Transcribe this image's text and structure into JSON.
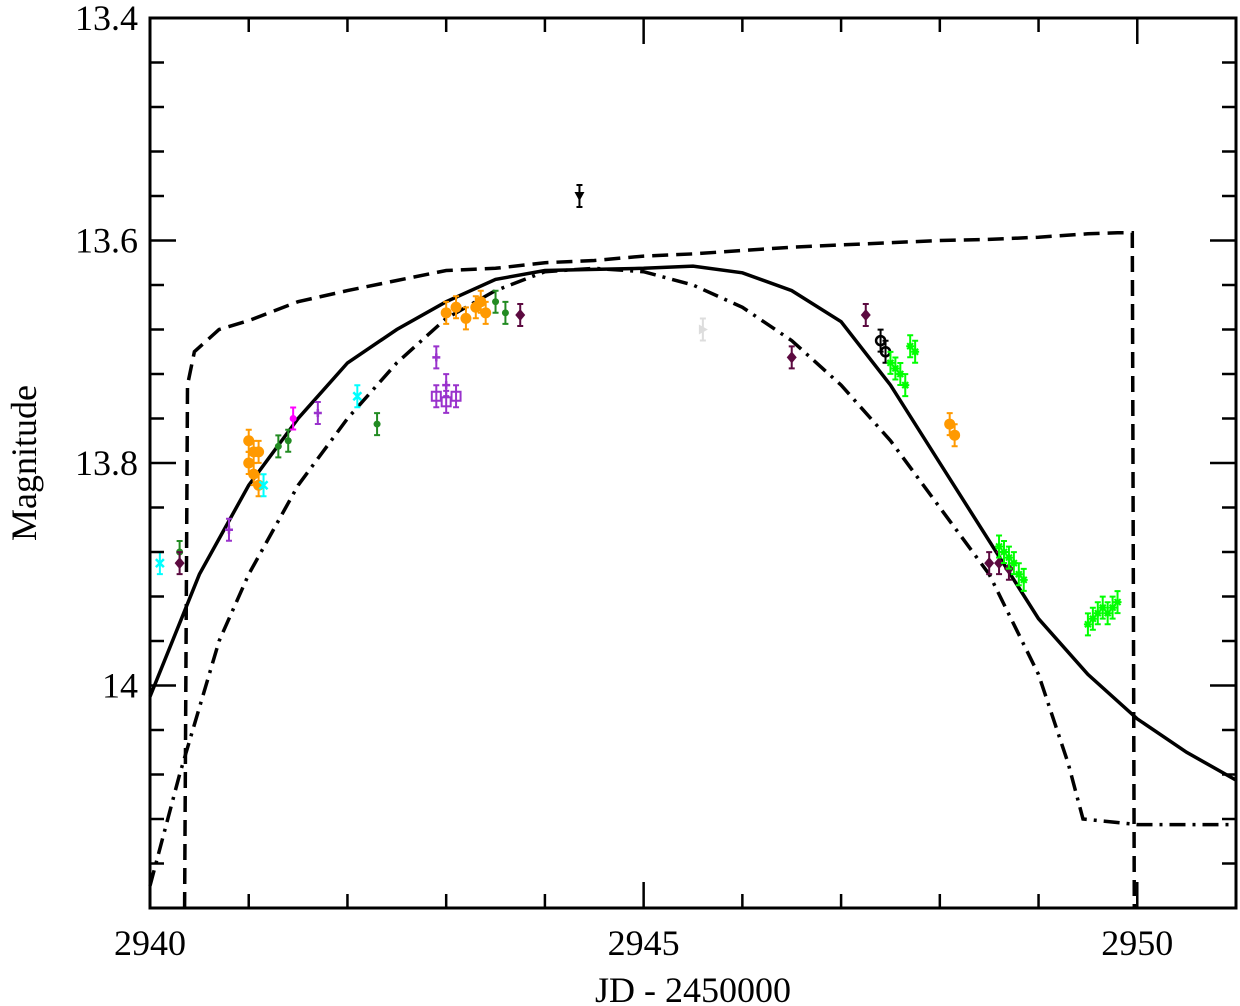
{
  "chart_data": {
    "type": "scatter",
    "title": "",
    "xlabel": "JD - 2450000",
    "ylabel": "Magnitude",
    "xlim": [
      2940,
      2951
    ],
    "ylim": [
      14.2,
      13.4
    ],
    "y_inverted": true,
    "x_ticks": [
      2940,
      2945,
      2950
    ],
    "x_tick_labels": [
      "2940",
      "2945",
      "2950"
    ],
    "y_ticks": [
      13.4,
      13.6,
      13.8,
      14.0
    ],
    "y_tick_labels": [
      "13.4",
      "13.6",
      "13.8",
      "14"
    ],
    "grid": false,
    "legend": "none",
    "model_curves": [
      {
        "style": "solid",
        "points": [
          [
            2940,
            14.01
          ],
          [
            2940.5,
            13.9
          ],
          [
            2941,
            13.82
          ],
          [
            2941.5,
            13.76
          ],
          [
            2942,
            13.71
          ],
          [
            2942.5,
            13.68
          ],
          [
            2943,
            13.655
          ],
          [
            2943.5,
            13.635
          ],
          [
            2944,
            13.627
          ],
          [
            2944.5,
            13.626
          ],
          [
            2945,
            13.625
          ],
          [
            2945.5,
            13.623
          ],
          [
            2946,
            13.629
          ],
          [
            2946.5,
            13.645
          ],
          [
            2947,
            13.673
          ],
          [
            2947.5,
            13.73
          ],
          [
            2948,
            13.8
          ],
          [
            2948.5,
            13.87
          ],
          [
            2949,
            13.94
          ],
          [
            2949.5,
            13.99
          ],
          [
            2950,
            14.03
          ],
          [
            2950.5,
            14.06
          ],
          [
            2951,
            14.085
          ]
        ]
      },
      {
        "style": "dashed",
        "points": [
          [
            2940.35,
            14.2
          ],
          [
            2940.38,
            13.73
          ],
          [
            2940.45,
            13.7
          ],
          [
            2940.7,
            13.68
          ],
          [
            2941,
            13.672
          ],
          [
            2941.5,
            13.655
          ],
          [
            2942,
            13.645
          ],
          [
            2942.5,
            13.636
          ],
          [
            2943,
            13.627
          ],
          [
            2943.5,
            13.625
          ],
          [
            2944,
            13.62
          ],
          [
            2944.5,
            13.618
          ],
          [
            2945,
            13.614
          ],
          [
            2945.5,
            13.612
          ],
          [
            2946,
            13.609
          ],
          [
            2946.5,
            13.606
          ],
          [
            2947,
            13.604
          ],
          [
            2947.5,
            13.602
          ],
          [
            2948,
            13.6
          ],
          [
            2948.5,
            13.599
          ],
          [
            2949,
            13.597
          ],
          [
            2949.5,
            13.594
          ],
          [
            2949.8,
            13.593
          ],
          [
            2949.95,
            13.593
          ],
          [
            2949.97,
            14.2
          ]
        ]
      },
      {
        "style": "dash-dot",
        "points": [
          [
            2940,
            14.18
          ],
          [
            2940.3,
            14.08
          ],
          [
            2940.7,
            13.96
          ],
          [
            2941,
            13.9
          ],
          [
            2941.5,
            13.82
          ],
          [
            2942,
            13.76
          ],
          [
            2942.5,
            13.71
          ],
          [
            2943,
            13.67
          ],
          [
            2943.5,
            13.645
          ],
          [
            2944,
            13.628
          ],
          [
            2944.5,
            13.625
          ],
          [
            2945,
            13.628
          ],
          [
            2945.5,
            13.64
          ],
          [
            2946,
            13.66
          ],
          [
            2946.5,
            13.69
          ],
          [
            2947,
            13.73
          ],
          [
            2947.5,
            13.78
          ],
          [
            2948,
            13.84
          ],
          [
            2948.5,
            13.9
          ],
          [
            2949,
            13.99
          ],
          [
            2949.3,
            14.07
          ],
          [
            2949.45,
            14.12
          ],
          [
            2950,
            14.125
          ],
          [
            2951,
            14.125
          ]
        ]
      }
    ],
    "series": [
      {
        "color": "#ff9900",
        "marker": "circle",
        "points": [
          [
            2941.0,
            13.78
          ],
          [
            2941.0,
            13.8
          ],
          [
            2941.05,
            13.79
          ],
          [
            2941.05,
            13.81
          ],
          [
            2941.1,
            13.82
          ],
          [
            2941.1,
            13.79
          ],
          [
            2943.0,
            13.665
          ],
          [
            2943.1,
            13.66
          ],
          [
            2943.2,
            13.67
          ],
          [
            2943.3,
            13.66
          ],
          [
            2943.35,
            13.655
          ],
          [
            2943.4,
            13.665
          ],
          [
            2948.1,
            13.765
          ],
          [
            2948.15,
            13.775
          ]
        ]
      },
      {
        "color": "#00ffff",
        "marker": "x",
        "points": [
          [
            2940.1,
            13.89
          ],
          [
            2941.15,
            13.82
          ],
          [
            2942.1,
            13.74
          ]
        ]
      },
      {
        "color": "#228b22",
        "marker": "dot",
        "points": [
          [
            2940.3,
            13.88
          ],
          [
            2941.3,
            13.785
          ],
          [
            2941.4,
            13.78
          ],
          [
            2942.3,
            13.765
          ],
          [
            2943.5,
            13.655
          ],
          [
            2943.6,
            13.665
          ]
        ]
      },
      {
        "color": "#9932cc",
        "marker": "plus",
        "points": [
          [
            2940.8,
            13.86
          ],
          [
            2941.7,
            13.755
          ],
          [
            2942.9,
            13.705
          ],
          [
            2943.0,
            13.73
          ]
        ]
      },
      {
        "color": "#9932cc",
        "marker": "open-square",
        "points": [
          [
            2942.9,
            13.74
          ],
          [
            2943.0,
            13.745
          ],
          [
            2943.1,
            13.74
          ]
        ]
      },
      {
        "color": "#ff00ff",
        "marker": "dot",
        "points": [
          [
            2941.45,
            13.76
          ]
        ]
      },
      {
        "color": "#5c0a40",
        "marker": "diamond",
        "points": [
          [
            2940.3,
            13.89
          ],
          [
            2943.75,
            13.667
          ],
          [
            2946.5,
            13.705
          ],
          [
            2947.25,
            13.667
          ],
          [
            2948.5,
            13.89
          ],
          [
            2948.6,
            13.89
          ],
          [
            2948.7,
            13.895
          ]
        ]
      },
      {
        "color": "#000000",
        "marker": "down-triangle",
        "points": [
          [
            2944.35,
            13.56
          ]
        ]
      },
      {
        "color": "#dddddd",
        "marker": "right-triangle",
        "points": [
          [
            2945.6,
            13.68
          ]
        ]
      },
      {
        "color": "#000000",
        "marker": "open-circle",
        "points": [
          [
            2947.4,
            13.69
          ],
          [
            2947.45,
            13.7
          ]
        ]
      },
      {
        "color": "#00ff00",
        "marker": "star",
        "points": [
          [
            2947.5,
            13.71
          ],
          [
            2947.55,
            13.715
          ],
          [
            2947.6,
            13.72
          ],
          [
            2947.65,
            13.73
          ],
          [
            2947.7,
            13.695
          ],
          [
            2947.75,
            13.7
          ],
          [
            2948.6,
            13.875
          ],
          [
            2948.65,
            13.88
          ],
          [
            2948.7,
            13.885
          ],
          [
            2948.75,
            13.89
          ],
          [
            2948.8,
            13.9
          ],
          [
            2948.85,
            13.905
          ],
          [
            2949.5,
            13.945
          ],
          [
            2949.55,
            13.94
          ],
          [
            2949.6,
            13.935
          ],
          [
            2949.65,
            13.93
          ],
          [
            2949.7,
            13.935
          ],
          [
            2949.75,
            13.93
          ],
          [
            2949.8,
            13.925
          ]
        ]
      }
    ]
  }
}
